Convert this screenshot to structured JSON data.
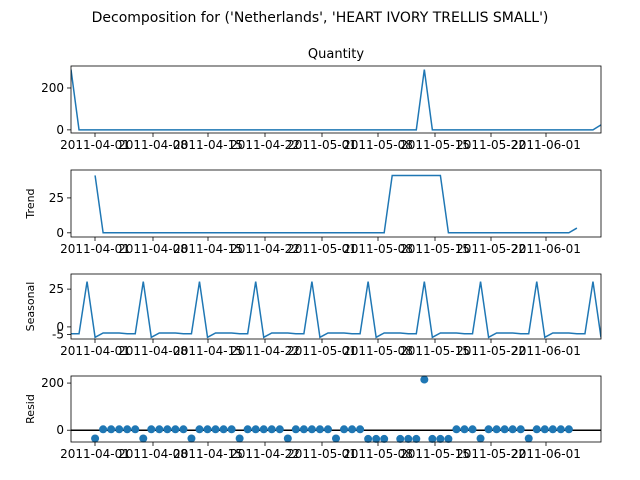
{
  "chart_data": {
    "type": "line",
    "title": "Decomposition for ('Netherlands', 'HEART IVORY TRELLIS SMALL')",
    "x_tick_labels": [
      "2011-04-01",
      "2011-04-08",
      "2011-04-15",
      "2011-04-22",
      "2011-05-01",
      "2011-05-08",
      "2011-05-15",
      "2011-05-22",
      "2011-06-01"
    ],
    "panels": [
      {
        "key": "observed",
        "title": "Quantity",
        "ylabel": "",
        "kind": "line",
        "ylim": [
          -15,
          305
        ],
        "yticks": [
          0,
          200
        ],
        "values": [
          288,
          0,
          0,
          0,
          0,
          0,
          0,
          0,
          0,
          0,
          0,
          0,
          0,
          0,
          0,
          0,
          0,
          0,
          0,
          0,
          0,
          0,
          0,
          0,
          0,
          0,
          0,
          0,
          0,
          0,
          0,
          0,
          0,
          0,
          0,
          0,
          0,
          0,
          0,
          0,
          0,
          0,
          0,
          0,
          288,
          0,
          0,
          0,
          0,
          0,
          0,
          0,
          0,
          0,
          0,
          0,
          0,
          0,
          0,
          0,
          0,
          0,
          0,
          0,
          0,
          0,
          24
        ]
      },
      {
        "key": "trend",
        "title": "",
        "ylabel": "Trend",
        "kind": "line",
        "ylim": [
          -3,
          45
        ],
        "yticks": [
          0,
          25
        ],
        "values": [
          null,
          null,
          null,
          41.1,
          0,
          0,
          0,
          0,
          0,
          0,
          0,
          0,
          0,
          0,
          0,
          0,
          0,
          0,
          0,
          0,
          0,
          0,
          0,
          0,
          0,
          0,
          0,
          0,
          0,
          0,
          0,
          0,
          0,
          0,
          0,
          0,
          0,
          0,
          0,
          0,
          41.1,
          41.1,
          41.1,
          41.1,
          41.1,
          41.1,
          41.1,
          0,
          0,
          0,
          0,
          0,
          0,
          0,
          0,
          0,
          0,
          0,
          0,
          0,
          0,
          0,
          0,
          3.4,
          null,
          null,
          null
        ]
      },
      {
        "key": "seasonal",
        "title": "",
        "ylabel": "Seasonal",
        "kind": "line",
        "ylim": [
          -8,
          35
        ],
        "yticks": [
          -5,
          0,
          25
        ],
        "values": [
          -4.5,
          -4.5,
          30,
          -6.9,
          -4,
          -4,
          -4,
          -4.5,
          -4.5,
          30,
          -6.9,
          -4,
          -4,
          -4,
          -4.5,
          -4.5,
          30,
          -6.9,
          -4,
          -4,
          -4,
          -4.5,
          -4.5,
          30,
          -6.9,
          -4,
          -4,
          -4,
          -4.5,
          -4.5,
          30,
          -6.9,
          -4,
          -4,
          -4,
          -4.5,
          -4.5,
          30,
          -6.9,
          -4,
          -4,
          -4,
          -4.5,
          -4.5,
          30,
          -6.9,
          -4,
          -4,
          -4,
          -4.5,
          -4.5,
          30,
          -6.9,
          -4,
          -4,
          -4,
          -4.5,
          -4.5,
          30,
          -6.9,
          -4,
          -4,
          -4,
          -4.5,
          -4.5,
          30,
          -6.9
        ]
      },
      {
        "key": "resid",
        "title": "",
        "ylabel": "Resid",
        "kind": "scatter",
        "ylim": [
          -50,
          230
        ],
        "yticks": [
          0,
          200
        ],
        "baseline": 0,
        "values": [
          null,
          null,
          null,
          -35,
          4,
          4,
          4,
          4,
          4,
          -35,
          4,
          4,
          4,
          4,
          4,
          -35,
          4,
          4,
          4,
          4,
          4,
          -35,
          4,
          4,
          4,
          4,
          4,
          -35,
          4,
          4,
          4,
          4,
          4,
          -35,
          4,
          4,
          4,
          -37,
          -37,
          -37,
          null,
          -37,
          -37,
          -37,
          215,
          -37,
          -37,
          -37,
          4,
          4,
          4,
          -35,
          4,
          4,
          4,
          4,
          4,
          -35,
          4,
          4,
          4,
          4,
          4,
          null,
          null,
          null,
          null
        ]
      }
    ]
  }
}
